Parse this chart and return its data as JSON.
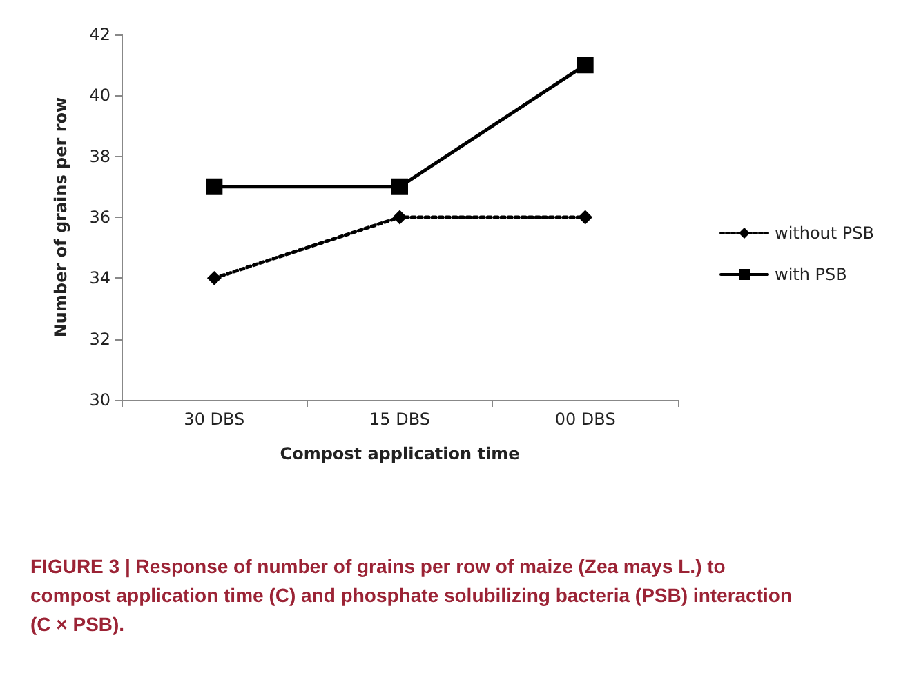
{
  "chart_data": {
    "type": "line",
    "xlabel": "Compost application time",
    "ylabel": "Number of grains per row",
    "categories": [
      "30 DBS",
      "15 DBS",
      "00 DBS"
    ],
    "series": [
      {
        "name": "without PSB",
        "color": "#000000",
        "values": [
          34,
          36,
          36
        ],
        "marker": "diamond",
        "line_style": "dotted"
      },
      {
        "name": "with PSB",
        "color": "#000000",
        "values": [
          37,
          37,
          41
        ],
        "marker": "square",
        "line_style": "solid"
      }
    ],
    "ylim": [
      30,
      42
    ],
    "yticks": [
      30,
      32,
      34,
      36,
      38,
      40,
      42
    ],
    "grid": false,
    "legend": "right",
    "annotations": [
      "FIGURE 3 | Response of number of grains per row of maize (Zea mays L.) to compost application time (C) and phosphate solubilizing bacteria (PSB) interaction (C × PSB)."
    ]
  }
}
